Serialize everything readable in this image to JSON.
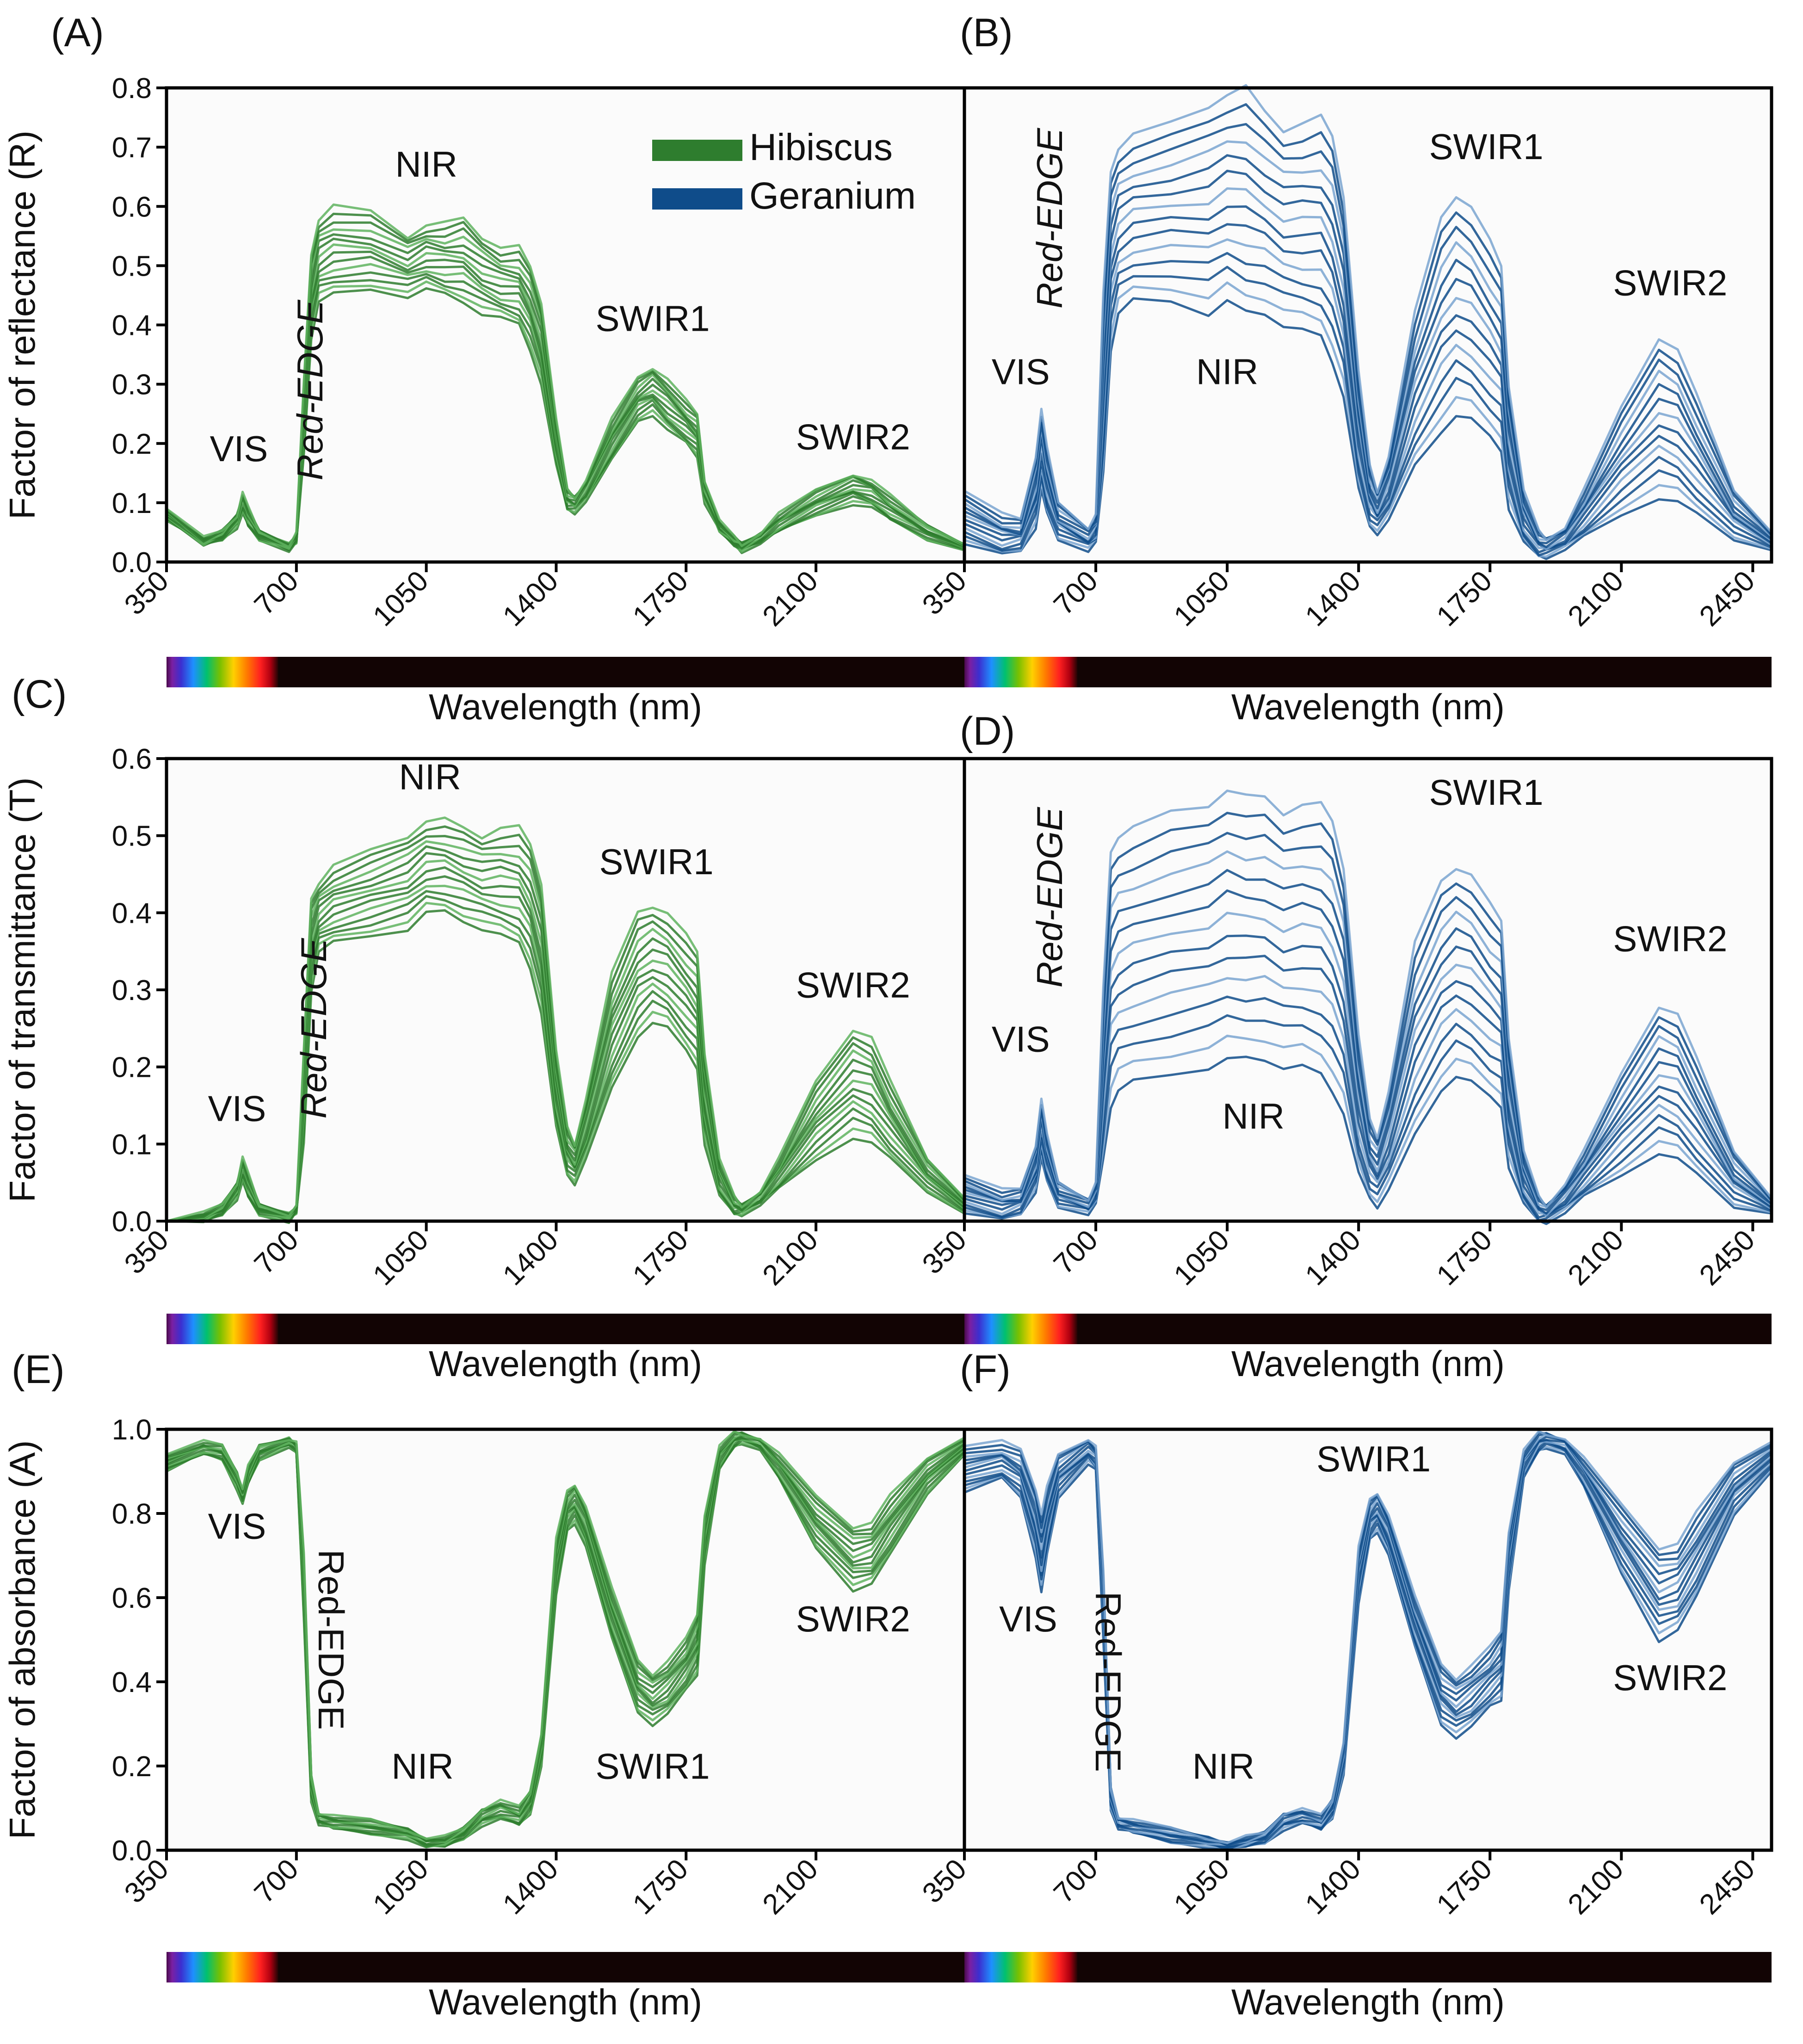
{
  "colors": {
    "hibiscus": "#2e7d2e",
    "hibiscus_light": "#5fb35f",
    "geranium": "#0f4c8a",
    "geranium_light": "#7aa4d0",
    "axis": "#000000",
    "spectrum_dark": "#120404"
  },
  "legend": {
    "items": [
      {
        "name": "Hibiscus",
        "color": "#2e7d2e"
      },
      {
        "name": "Geranium",
        "color": "#0f4c8a"
      }
    ]
  },
  "chart_data": [
    {
      "panel": "(A)",
      "type": "line",
      "ylabel": "Factor of reflectance (R)",
      "xlabel": "Wavelength (nm)",
      "xlim": [
        350,
        2500
      ],
      "ylim": [
        0.0,
        0.8
      ],
      "xticks": [
        "350",
        "700",
        "1050",
        "1400",
        "1750",
        "2100"
      ],
      "yticks": [
        "0.0",
        "0.1",
        "0.2",
        "0.3",
        "0.4",
        "0.5",
        "0.6",
        "0.7",
        "0.8"
      ],
      "species": "Hibiscus",
      "color": "#2e7d2e",
      "x": [
        350,
        450,
        500,
        540,
        555,
        570,
        600,
        680,
        700,
        720,
        740,
        760,
        800,
        900,
        1000,
        1050,
        1100,
        1150,
        1200,
        1250,
        1300,
        1330,
        1360,
        1400,
        1430,
        1450,
        1480,
        1550,
        1620,
        1660,
        1700,
        1750,
        1780,
        1800,
        1840,
        1880,
        1900,
        1950,
        2000,
        2100,
        2200,
        2250,
        2300,
        2400,
        2500
      ],
      "envelope_low": [
        0.07,
        0.03,
        0.04,
        0.06,
        0.08,
        0.06,
        0.04,
        0.02,
        0.03,
        0.18,
        0.38,
        0.44,
        0.45,
        0.46,
        0.45,
        0.46,
        0.45,
        0.44,
        0.42,
        0.41,
        0.4,
        0.36,
        0.3,
        0.16,
        0.09,
        0.085,
        0.1,
        0.17,
        0.24,
        0.25,
        0.22,
        0.2,
        0.18,
        0.1,
        0.05,
        0.03,
        0.02,
        0.03,
        0.05,
        0.08,
        0.1,
        0.09,
        0.07,
        0.04,
        0.02
      ],
      "envelope_high": [
        0.09,
        0.04,
        0.05,
        0.08,
        0.12,
        0.09,
        0.05,
        0.03,
        0.05,
        0.3,
        0.52,
        0.58,
        0.6,
        0.59,
        0.55,
        0.57,
        0.57,
        0.58,
        0.55,
        0.53,
        0.53,
        0.5,
        0.44,
        0.24,
        0.12,
        0.11,
        0.14,
        0.24,
        0.31,
        0.33,
        0.31,
        0.27,
        0.25,
        0.14,
        0.07,
        0.04,
        0.03,
        0.05,
        0.08,
        0.12,
        0.15,
        0.14,
        0.11,
        0.06,
        0.03
      ],
      "annotations": [
        {
          "text": "VIS",
          "x": 545,
          "y": 0.17
        },
        {
          "text": "Red-EDGE",
          "x": 770,
          "y": 0.29,
          "rotate": -90
        },
        {
          "text": "NIR",
          "x": 1050,
          "y": 0.65
        },
        {
          "text": "SWIR1",
          "x": 1660,
          "y": 0.39
        },
        {
          "text": "SWIR2",
          "x": 2200,
          "y": 0.19
        }
      ]
    },
    {
      "panel": "(B)",
      "type": "line",
      "xlabel": "Wavelength (nm)",
      "xlim": [
        350,
        2500
      ],
      "ylim": [
        0.0,
        0.8
      ],
      "xticks": [
        "350",
        "700",
        "1050",
        "1400",
        "1750",
        "2100",
        "2450"
      ],
      "species": "Geranium",
      "color": "#0f4c8a",
      "x": [
        350,
        450,
        500,
        540,
        555,
        570,
        600,
        680,
        700,
        720,
        740,
        760,
        800,
        900,
        1000,
        1050,
        1100,
        1150,
        1200,
        1250,
        1300,
        1330,
        1360,
        1400,
        1430,
        1450,
        1480,
        1550,
        1620,
        1660,
        1700,
        1750,
        1780,
        1800,
        1840,
        1880,
        1900,
        1950,
        2000,
        2100,
        2200,
        2250,
        2300,
        2400,
        2500
      ],
      "envelope_low": [
        0.03,
        0.01,
        0.02,
        0.06,
        0.12,
        0.08,
        0.04,
        0.02,
        0.03,
        0.15,
        0.36,
        0.42,
        0.44,
        0.44,
        0.42,
        0.44,
        0.42,
        0.42,
        0.4,
        0.39,
        0.38,
        0.34,
        0.28,
        0.12,
        0.06,
        0.05,
        0.07,
        0.16,
        0.22,
        0.25,
        0.24,
        0.21,
        0.19,
        0.09,
        0.03,
        0.01,
        0.01,
        0.02,
        0.04,
        0.08,
        0.11,
        0.1,
        0.08,
        0.04,
        0.02
      ],
      "envelope_high": [
        0.12,
        0.08,
        0.07,
        0.18,
        0.26,
        0.19,
        0.1,
        0.06,
        0.08,
        0.45,
        0.66,
        0.7,
        0.72,
        0.74,
        0.77,
        0.79,
        0.8,
        0.76,
        0.73,
        0.74,
        0.75,
        0.72,
        0.62,
        0.32,
        0.16,
        0.12,
        0.18,
        0.42,
        0.58,
        0.62,
        0.6,
        0.54,
        0.5,
        0.3,
        0.12,
        0.05,
        0.04,
        0.06,
        0.12,
        0.26,
        0.38,
        0.36,
        0.28,
        0.12,
        0.05
      ],
      "annotations": [
        {
          "text": "VIS",
          "x": 500,
          "y": 0.3
        },
        {
          "text": "Red-EDGE",
          "x": 610,
          "y": 0.58,
          "rotate": -90
        },
        {
          "text": "NIR",
          "x": 1050,
          "y": 0.3
        },
        {
          "text": "SWIR1",
          "x": 1740,
          "y": 0.68
        },
        {
          "text": "SWIR2",
          "x": 2230,
          "y": 0.45
        }
      ]
    },
    {
      "panel": "(C)",
      "type": "line",
      "ylabel": "Factor of transmittance (T)",
      "xlabel": "Wavelength (nm)",
      "xlim": [
        350,
        2500
      ],
      "ylim": [
        0.0,
        0.6
      ],
      "xticks": [
        "350",
        "700",
        "1050",
        "1400",
        "1750",
        "2100"
      ],
      "yticks": [
        "0.0",
        "0.1",
        "0.2",
        "0.3",
        "0.4",
        "0.5",
        "0.6"
      ],
      "species": "Hibiscus",
      "color": "#2e7d2e",
      "x": [
        350,
        450,
        500,
        540,
        555,
        570,
        600,
        680,
        700,
        720,
        740,
        760,
        800,
        900,
        1000,
        1050,
        1100,
        1150,
        1200,
        1250,
        1300,
        1330,
        1360,
        1400,
        1430,
        1450,
        1480,
        1550,
        1620,
        1660,
        1700,
        1750,
        1780,
        1800,
        1840,
        1880,
        1900,
        1950,
        2000,
        2100,
        2200,
        2250,
        2300,
        2400,
        2500
      ],
      "envelope_low": [
        0.0,
        0.0,
        0.01,
        0.03,
        0.05,
        0.03,
        0.01,
        0.0,
        0.01,
        0.1,
        0.3,
        0.35,
        0.36,
        0.37,
        0.38,
        0.4,
        0.4,
        0.39,
        0.38,
        0.37,
        0.36,
        0.33,
        0.27,
        0.12,
        0.06,
        0.05,
        0.08,
        0.17,
        0.24,
        0.26,
        0.25,
        0.22,
        0.2,
        0.1,
        0.03,
        0.01,
        0.01,
        0.02,
        0.04,
        0.08,
        0.11,
        0.1,
        0.08,
        0.04,
        0.01
      ],
      "envelope_high": [
        0.0,
        0.01,
        0.02,
        0.05,
        0.085,
        0.06,
        0.02,
        0.01,
        0.02,
        0.22,
        0.42,
        0.44,
        0.46,
        0.48,
        0.5,
        0.52,
        0.52,
        0.51,
        0.5,
        0.51,
        0.51,
        0.49,
        0.44,
        0.22,
        0.12,
        0.1,
        0.16,
        0.32,
        0.4,
        0.41,
        0.4,
        0.37,
        0.35,
        0.22,
        0.08,
        0.03,
        0.02,
        0.04,
        0.08,
        0.18,
        0.25,
        0.24,
        0.18,
        0.08,
        0.03
      ],
      "annotations": [
        {
          "text": "VIS",
          "x": 540,
          "y": 0.13
        },
        {
          "text": "Red-EDGE",
          "x": 780,
          "y": 0.25,
          "rotate": -90
        },
        {
          "text": "NIR",
          "x": 1060,
          "y": 0.56
        },
        {
          "text": "SWIR1",
          "x": 1670,
          "y": 0.45
        },
        {
          "text": "SWIR2",
          "x": 2200,
          "y": 0.29
        }
      ]
    },
    {
      "panel": "(D)",
      "type": "line",
      "xlabel": "Wavelength (nm)",
      "xlim": [
        350,
        2500
      ],
      "ylim": [
        0.0,
        0.6
      ],
      "xticks": [
        "350",
        "700",
        "1050",
        "1400",
        "1750",
        "2100",
        "2450"
      ],
      "species": "Geranium",
      "color": "#0f4c8a",
      "x": [
        350,
        450,
        500,
        540,
        555,
        570,
        600,
        680,
        700,
        720,
        740,
        760,
        800,
        900,
        1000,
        1050,
        1100,
        1150,
        1200,
        1250,
        1300,
        1330,
        1360,
        1400,
        1430,
        1450,
        1480,
        1550,
        1620,
        1660,
        1700,
        1750,
        1780,
        1800,
        1840,
        1880,
        1900,
        1950,
        2000,
        2100,
        2200,
        2250,
        2300,
        2400,
        2500
      ],
      "envelope_low": [
        0.01,
        0.0,
        0.01,
        0.04,
        0.08,
        0.05,
        0.02,
        0.01,
        0.02,
        0.08,
        0.15,
        0.17,
        0.18,
        0.19,
        0.2,
        0.21,
        0.21,
        0.21,
        0.2,
        0.2,
        0.19,
        0.17,
        0.14,
        0.06,
        0.03,
        0.02,
        0.04,
        0.11,
        0.17,
        0.19,
        0.18,
        0.16,
        0.15,
        0.07,
        0.02,
        0.0,
        0.0,
        0.01,
        0.03,
        0.06,
        0.09,
        0.08,
        0.06,
        0.02,
        0.01
      ],
      "envelope_high": [
        0.06,
        0.04,
        0.04,
        0.1,
        0.16,
        0.11,
        0.05,
        0.03,
        0.05,
        0.3,
        0.48,
        0.5,
        0.51,
        0.53,
        0.54,
        0.56,
        0.55,
        0.55,
        0.53,
        0.54,
        0.54,
        0.52,
        0.46,
        0.24,
        0.13,
        0.11,
        0.17,
        0.36,
        0.44,
        0.46,
        0.45,
        0.41,
        0.39,
        0.24,
        0.09,
        0.03,
        0.02,
        0.05,
        0.09,
        0.19,
        0.28,
        0.27,
        0.21,
        0.09,
        0.03
      ],
      "annotations": [
        {
          "text": "VIS",
          "x": 500,
          "y": 0.22
        },
        {
          "text": "Red-EDGE",
          "x": 610,
          "y": 0.42,
          "rotate": -90
        },
        {
          "text": "NIR",
          "x": 1120,
          "y": 0.12
        },
        {
          "text": "SWIR1",
          "x": 1740,
          "y": 0.54
        },
        {
          "text": "SWIR2",
          "x": 2230,
          "y": 0.35
        }
      ]
    },
    {
      "panel": "(E)",
      "type": "line",
      "ylabel": "Factor of absorbance (A)",
      "xlabel": "Wavelength (nm)",
      "xlim": [
        350,
        2500
      ],
      "ylim": [
        0.0,
        1.0
      ],
      "xticks": [
        "350",
        "700",
        "1050",
        "1400",
        "1750",
        "2100"
      ],
      "yticks": [
        "0.0",
        "0.2",
        "0.4",
        "0.6",
        "0.8",
        "1.0"
      ],
      "species": "Hibiscus",
      "color": "#2e7d2e",
      "x": [
        350,
        450,
        500,
        540,
        555,
        570,
        600,
        680,
        700,
        720,
        740,
        760,
        800,
        900,
        1000,
        1050,
        1100,
        1150,
        1200,
        1250,
        1300,
        1330,
        1360,
        1400,
        1430,
        1450,
        1480,
        1550,
        1620,
        1660,
        1700,
        1750,
        1780,
        1800,
        1840,
        1880,
        1900,
        1950,
        2000,
        2100,
        2200,
        2250,
        2300,
        2400,
        2500
      ],
      "envelope_low": [
        0.9,
        0.94,
        0.93,
        0.86,
        0.82,
        0.87,
        0.93,
        0.96,
        0.94,
        0.55,
        0.12,
        0.06,
        0.05,
        0.04,
        0.03,
        0.005,
        0.01,
        0.03,
        0.06,
        0.07,
        0.06,
        0.09,
        0.2,
        0.6,
        0.76,
        0.78,
        0.72,
        0.5,
        0.33,
        0.3,
        0.32,
        0.38,
        0.42,
        0.68,
        0.9,
        0.96,
        0.97,
        0.95,
        0.88,
        0.72,
        0.62,
        0.63,
        0.7,
        0.85,
        0.94
      ],
      "envelope_high": [
        0.94,
        0.97,
        0.96,
        0.9,
        0.86,
        0.91,
        0.96,
        0.98,
        0.97,
        0.7,
        0.18,
        0.09,
        0.08,
        0.07,
        0.05,
        0.03,
        0.03,
        0.05,
        0.1,
        0.12,
        0.1,
        0.14,
        0.28,
        0.74,
        0.85,
        0.87,
        0.82,
        0.62,
        0.45,
        0.42,
        0.45,
        0.5,
        0.56,
        0.8,
        0.96,
        0.99,
        0.99,
        0.98,
        0.94,
        0.84,
        0.77,
        0.78,
        0.84,
        0.93,
        0.98
      ],
      "annotations": [
        {
          "text": "VIS",
          "x": 540,
          "y": 0.74
        },
        {
          "text": "Red-EDGE",
          "x": 760,
          "y": 0.5,
          "rotate": 90
        },
        {
          "text": "NIR",
          "x": 1040,
          "y": 0.17
        },
        {
          "text": "SWIR1",
          "x": 1660,
          "y": 0.17
        },
        {
          "text": "SWIR2",
          "x": 2200,
          "y": 0.52
        }
      ]
    },
    {
      "panel": "(F)",
      "type": "line",
      "xlabel": "Wavelength (nm)",
      "xlim": [
        350,
        2500
      ],
      "ylim": [
        0.0,
        1.0
      ],
      "xticks": [
        "350",
        "700",
        "1050",
        "1400",
        "1750",
        "2100",
        "2450"
      ],
      "species": "Geranium",
      "color": "#0f4c8a",
      "x": [
        350,
        450,
        500,
        540,
        555,
        570,
        600,
        680,
        700,
        720,
        740,
        760,
        800,
        900,
        1000,
        1050,
        1100,
        1150,
        1200,
        1250,
        1300,
        1330,
        1360,
        1400,
        1430,
        1450,
        1480,
        1550,
        1620,
        1660,
        1700,
        1750,
        1780,
        1800,
        1840,
        1880,
        1900,
        1950,
        2000,
        2100,
        2200,
        2250,
        2300,
        2400,
        2500
      ],
      "envelope_low": [
        0.85,
        0.88,
        0.84,
        0.7,
        0.61,
        0.7,
        0.84,
        0.92,
        0.9,
        0.5,
        0.1,
        0.05,
        0.04,
        0.02,
        0.01,
        0.0,
        0.01,
        0.02,
        0.05,
        0.06,
        0.05,
        0.08,
        0.18,
        0.58,
        0.74,
        0.76,
        0.7,
        0.48,
        0.3,
        0.27,
        0.29,
        0.34,
        0.36,
        0.62,
        0.88,
        0.95,
        0.96,
        0.94,
        0.86,
        0.66,
        0.5,
        0.52,
        0.6,
        0.8,
        0.9
      ],
      "envelope_high": [
        0.96,
        0.97,
        0.95,
        0.86,
        0.8,
        0.86,
        0.94,
        0.98,
        0.96,
        0.66,
        0.15,
        0.08,
        0.07,
        0.05,
        0.03,
        0.02,
        0.03,
        0.04,
        0.09,
        0.1,
        0.08,
        0.12,
        0.26,
        0.72,
        0.83,
        0.85,
        0.8,
        0.6,
        0.44,
        0.41,
        0.44,
        0.48,
        0.52,
        0.76,
        0.95,
        0.99,
        0.99,
        0.98,
        0.93,
        0.82,
        0.72,
        0.73,
        0.8,
        0.92,
        0.97
      ],
      "annotations": [
        {
          "text": "VIS",
          "x": 520,
          "y": 0.52
        },
        {
          "text": "Red-EDGE",
          "x": 700,
          "y": 0.4,
          "rotate": 90
        },
        {
          "text": "NIR",
          "x": 1040,
          "y": 0.17
        },
        {
          "text": "SWIR1",
          "x": 1440,
          "y": 0.9
        },
        {
          "text": "SWIR2",
          "x": 2230,
          "y": 0.38
        }
      ]
    }
  ]
}
